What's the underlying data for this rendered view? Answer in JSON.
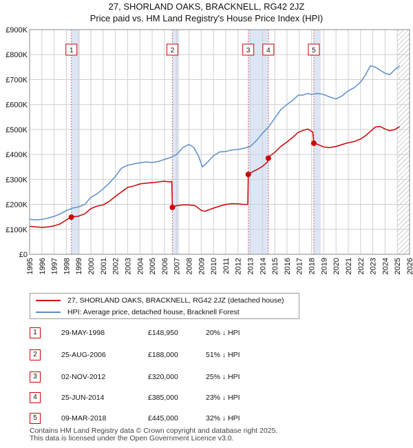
{
  "title_line1": "27, SHORLAND OAKS, BRACKNELL, RG42 2JZ",
  "title_line2": "Price paid vs. HM Land Registry's House Price Index (HPI)",
  "colors": {
    "property_line": "#cc0000",
    "hpi_line": "#5b8ec9",
    "shade": "#dce6f5",
    "marker": "#cc0000",
    "grid": "#cfcfcf",
    "vline": "#e06060"
  },
  "legend": {
    "property_label": "27, SHORLAND OAKS, BRACKNELL, RG42 2JZ (detached house)",
    "hpi_label": "HPI: Average price, detached house, Bracknell Forest"
  },
  "transactions": [
    {
      "num": "1",
      "date": "29-MAY-1998",
      "price": "£148,950",
      "hpi": "20% ↓ HPI"
    },
    {
      "num": "2",
      "date": "25-AUG-2006",
      "price": "£188,000",
      "hpi": "51% ↓ HPI"
    },
    {
      "num": "3",
      "date": "02-NOV-2012",
      "price": "£320,000",
      "hpi": "25% ↓ HPI"
    },
    {
      "num": "4",
      "date": "25-JUN-2014",
      "price": "£385,000",
      "hpi": "23% ↓ HPI"
    },
    {
      "num": "5",
      "date": "09-MAR-2018",
      "price": "£445,000",
      "hpi": "32% ↓ HPI"
    }
  ],
  "footer_line1": "Contains HM Land Registry data © Crown copyright and database right 2025.",
  "footer_line2": "This data is licensed under the Open Government Licence v3.0.",
  "chart_data": {
    "type": "line",
    "title": "27, SHORLAND OAKS, BRACKNELL, RG42 2JZ",
    "subtitle": "Price paid vs. HM Land Registry's House Price Index (HPI)",
    "xlabel": "",
    "ylabel": "",
    "xlim": [
      1995,
      2026
    ],
    "ylim": [
      0,
      900000
    ],
    "y_ticks": [
      {
        "v": 0,
        "label": "£0"
      },
      {
        "v": 100000,
        "label": "£100K"
      },
      {
        "v": 200000,
        "label": "£200K"
      },
      {
        "v": 300000,
        "label": "£300K"
      },
      {
        "v": 400000,
        "label": "£400K"
      },
      {
        "v": 500000,
        "label": "£500K"
      },
      {
        "v": 600000,
        "label": "£600K"
      },
      {
        "v": 700000,
        "label": "£700K"
      },
      {
        "v": 800000,
        "label": "£800K"
      },
      {
        "v": 900000,
        "label": "£900K"
      }
    ],
    "x_ticks": [
      "1995",
      "1996",
      "1997",
      "1998",
      "1999",
      "2000",
      "2001",
      "2002",
      "2003",
      "2004",
      "2005",
      "2006",
      "2007",
      "2008",
      "2009",
      "2010",
      "2011",
      "2012",
      "2013",
      "2014",
      "2015",
      "2016",
      "2017",
      "2018",
      "2019",
      "2020",
      "2021",
      "2022",
      "2023",
      "2024",
      "2025",
      "2026"
    ],
    "grid": true,
    "shaded_ranges": [
      [
        1998.41,
        1999.1
      ],
      [
        2006.65,
        2007.2
      ],
      [
        2012.84,
        2014.48
      ],
      [
        2018.19,
        2018.75
      ]
    ],
    "hatched_from": 2025.0,
    "sales": [
      {
        "label": "1",
        "x": 1998.41,
        "y": 148950
      },
      {
        "label": "2",
        "x": 2006.65,
        "y": 188000
      },
      {
        "label": "3",
        "x": 2012.84,
        "y": 320000
      },
      {
        "label": "4",
        "x": 2014.48,
        "y": 385000
      },
      {
        "label": "5",
        "x": 2018.19,
        "y": 445000
      }
    ],
    "series": [
      {
        "name": "27, SHORLAND OAKS, BRACKNELL, RG42 2JZ (detached house)",
        "x": [
          1995.0,
          1995.5,
          1996.0,
          1996.5,
          1997.0,
          1997.5,
          1998.0,
          1998.41,
          1998.42,
          1999.0,
          1999.5,
          2000.0,
          2000.5,
          2001.0,
          2001.5,
          2002.0,
          2002.5,
          2003.0,
          2003.5,
          2004.0,
          2004.5,
          2005.0,
          2005.5,
          2006.0,
          2006.4,
          2006.6,
          2006.65,
          2006.66,
          2007.0,
          2007.5,
          2008.0,
          2008.5,
          2009.0,
          2009.3,
          2009.7,
          2010.0,
          2010.5,
          2011.0,
          2011.5,
          2012.0,
          2012.5,
          2012.8,
          2012.84,
          2012.85,
          2013.0,
          2013.5,
          2014.0,
          2014.4,
          2014.48,
          2014.49,
          2015.0,
          2015.5,
          2016.0,
          2016.5,
          2016.9,
          2017.3,
          2017.7,
          2018.1,
          2018.19,
          2018.2,
          2018.5,
          2019.0,
          2019.5,
          2020.0,
          2020.5,
          2021.0,
          2021.5,
          2022.0,
          2022.4,
          2022.8,
          2023.2,
          2023.6,
          2024.0,
          2024.4,
          2024.8,
          2025.2
        ],
        "values": [
          112000,
          110000,
          108000,
          110000,
          114000,
          122000,
          138000,
          148950,
          150000,
          153000,
          162000,
          183000,
          193000,
          198000,
          212000,
          232000,
          250000,
          268000,
          274000,
          282000,
          285000,
          287000,
          290000,
          293000,
          290000,
          292000,
          188000,
          190000,
          195000,
          198000,
          198000,
          195000,
          176000,
          172000,
          180000,
          185000,
          193000,
          200000,
          203000,
          202000,
          200000,
          200000,
          320000,
          322000,
          326000,
          338000,
          352000,
          370000,
          385000,
          390000,
          408000,
          432000,
          450000,
          470000,
          488000,
          496000,
          502000,
          490000,
          445000,
          447000,
          440000,
          430000,
          428000,
          432000,
          440000,
          447000,
          452000,
          462000,
          475000,
          492000,
          510000,
          512000,
          502000,
          495000,
          500000,
          512000
        ]
      },
      {
        "name": "HPI: Average price, detached house, Bracknell Forest",
        "x": [
          1995.0,
          1995.5,
          1996.0,
          1996.5,
          1997.0,
          1997.5,
          1998.0,
          1998.5,
          1999.0,
          1999.5,
          2000.0,
          2000.5,
          2001.0,
          2001.5,
          2002.0,
          2002.5,
          2003.0,
          2003.5,
          2004.0,
          2004.5,
          2005.0,
          2005.5,
          2006.0,
          2006.5,
          2007.0,
          2007.5,
          2008.0,
          2008.4,
          2008.8,
          2009.1,
          2009.5,
          2010.0,
          2010.5,
          2011.0,
          2011.5,
          2012.0,
          2012.5,
          2013.0,
          2013.5,
          2014.0,
          2014.5,
          2015.0,
          2015.5,
          2016.0,
          2016.5,
          2016.9,
          2017.3,
          2017.7,
          2018.0,
          2018.5,
          2019.0,
          2019.5,
          2020.0,
          2020.5,
          2021.0,
          2021.5,
          2022.0,
          2022.4,
          2022.8,
          2023.2,
          2023.6,
          2024.0,
          2024.4,
          2024.8,
          2025.2
        ],
        "values": [
          140000,
          138000,
          140000,
          145000,
          152000,
          162000,
          175000,
          185000,
          190000,
          200000,
          228000,
          242000,
          262000,
          285000,
          312000,
          345000,
          357000,
          362000,
          367000,
          370000,
          368000,
          372000,
          380000,
          388000,
          400000,
          428000,
          440000,
          428000,
          392000,
          350000,
          368000,
          395000,
          410000,
          412000,
          418000,
          420000,
          425000,
          432000,
          455000,
          485000,
          510000,
          545000,
          580000,
          600000,
          618000,
          637000,
          638000,
          645000,
          640000,
          645000,
          640000,
          630000,
          622000,
          635000,
          655000,
          668000,
          690000,
          718000,
          755000,
          750000,
          738000,
          725000,
          720000,
          740000,
          755000
        ]
      }
    ]
  }
}
